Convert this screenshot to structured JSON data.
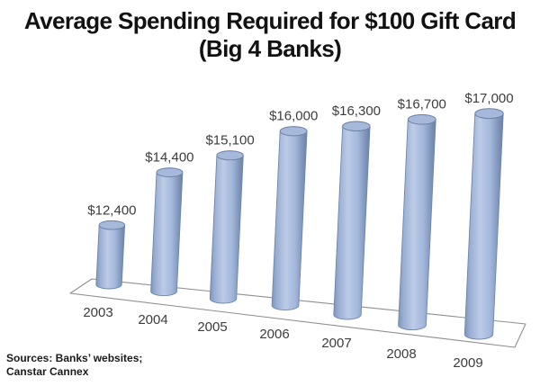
{
  "title": {
    "line1": "Average Spending Required for $100 Gift Card",
    "line2": "(Big 4 Banks)"
  },
  "source": {
    "line1": "Sources: Banks’ websites;",
    "line2": "Canstar Cannex"
  },
  "chart_data": {
    "type": "bar",
    "subtype": "3d-cylinder",
    "title": "Average Spending Required for $100 Gift Card (Big 4 Banks)",
    "categories": [
      "2003",
      "2004",
      "2005",
      "2006",
      "2007",
      "2008",
      "2009"
    ],
    "values": [
      12400,
      14400,
      15100,
      16000,
      16300,
      16700,
      17000
    ],
    "labels": [
      "$12,400",
      "$14,400",
      "$15,100",
      "$16,000",
      "$16,300",
      "$16,700",
      "$17,000"
    ],
    "xlabel": "",
    "ylabel": "",
    "ylim_implied": [
      10000,
      17000
    ],
    "legend": false,
    "gridlines": false,
    "colors": {
      "cylinder_body_mid": "#bccbe7",
      "cylinder_body_light": "#9aafd3",
      "cylinder_body_dark": "#6a81a5",
      "cylinder_edge": "#7187ad",
      "cylinder_top": "#a6b9db",
      "cylinder_top_rim": "#6d83a8",
      "floor_stroke": "#8f8f8f",
      "label_text": "#3d3d3d",
      "title_text": "#121212"
    }
  }
}
